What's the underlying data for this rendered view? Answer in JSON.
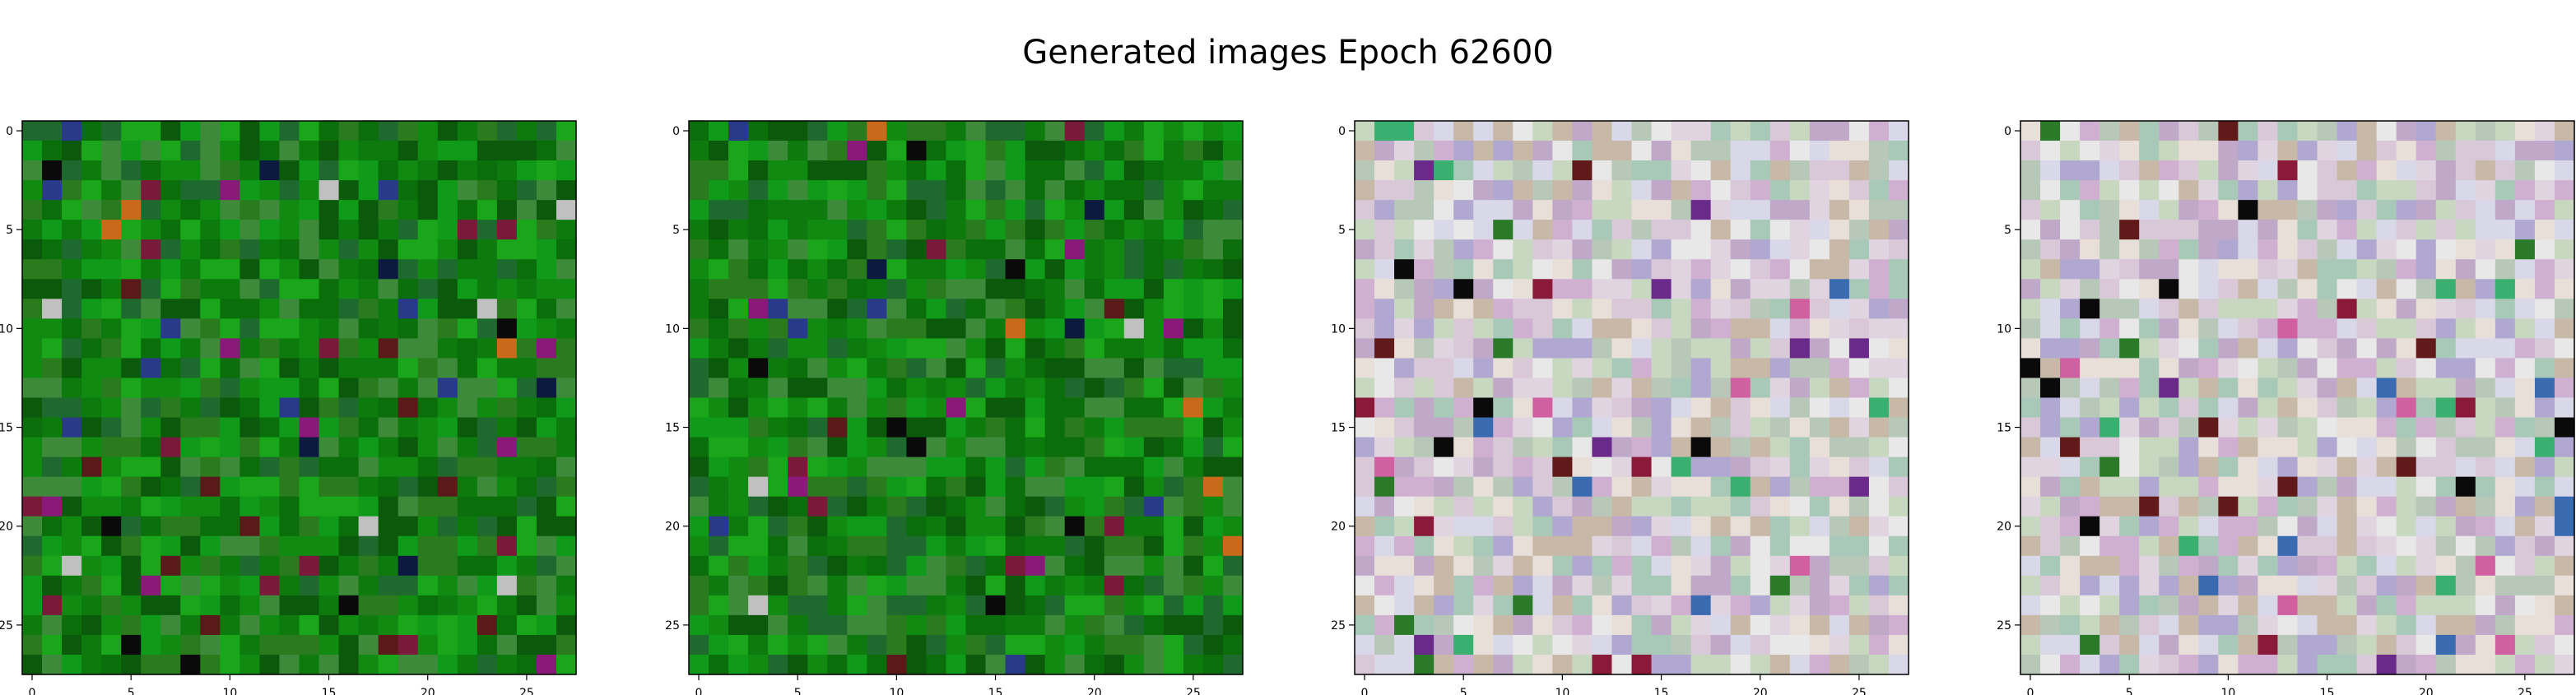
{
  "figure": {
    "title": "Generated images Epoch 62600"
  },
  "palette": {
    "green_variant": [
      "#0a6e0a",
      "#0c7a0c",
      "#118a11",
      "#0f9a1a",
      "#1aa61a",
      "#2a7a1e",
      "#0b5a0b",
      "#3d8a3a",
      "#1e6a2e"
    ],
    "green_accents": [
      "#0b1a3e",
      "#5a1a1a",
      "#7a1a3a",
      "#c96a1a",
      "#c0c0c0",
      "#0a0a0a",
      "#2a3a8a",
      "#8a1a7a"
    ],
    "pastel_variant": [
      "#d8c8d8",
      "#c8d8c0",
      "#e0d4e0",
      "#b8c8b8",
      "#d8d8e8",
      "#c0a8c8",
      "#e8e0d8",
      "#a8c8b8",
      "#d0b0d0",
      "#e8e8e8",
      "#b0a8d0",
      "#c8b8a8"
    ],
    "pastel_accents": [
      "#0a0a0a",
      "#6a2a8a",
      "#8a1a3a",
      "#2a7a2a",
      "#3a6ab0",
      "#d060a0",
      "#3ab070",
      "#601a1a"
    ]
  },
  "chart_data": [
    {
      "type": "heatmap",
      "title": "",
      "variant": "green",
      "seed": 7,
      "grid": [
        28,
        28
      ],
      "xlim": [
        -0.5,
        27.5
      ],
      "ylim": [
        27.5,
        -0.5
      ],
      "xticks": [
        0,
        5,
        10,
        15,
        20,
        25
      ],
      "yticks": [
        0,
        5,
        10,
        15,
        20,
        25
      ],
      "grid_lines": false
    },
    {
      "type": "heatmap",
      "title": "",
      "variant": "green",
      "seed": 19,
      "grid": [
        28,
        28
      ],
      "xlim": [
        -0.5,
        27.5
      ],
      "ylim": [
        27.5,
        -0.5
      ],
      "xticks": [
        0,
        5,
        10,
        15,
        20,
        25
      ],
      "yticks": [
        0,
        5,
        10,
        15,
        20,
        25
      ],
      "grid_lines": false
    },
    {
      "type": "heatmap",
      "title": "",
      "variant": "pastel",
      "seed": 31,
      "grid": [
        28,
        28
      ],
      "xlim": [
        -0.5,
        27.5
      ],
      "ylim": [
        27.5,
        -0.5
      ],
      "xticks": [
        0,
        5,
        10,
        15,
        20,
        25
      ],
      "yticks": [
        0,
        5,
        10,
        15,
        20,
        25
      ],
      "grid_lines": false
    },
    {
      "type": "heatmap",
      "title": "",
      "variant": "pastel",
      "seed": 47,
      "grid": [
        28,
        28
      ],
      "xlim": [
        -0.5,
        27.5
      ],
      "ylim": [
        27.5,
        -0.5
      ],
      "xticks": [
        0,
        5,
        10,
        15,
        20,
        25
      ],
      "yticks": [
        0,
        5,
        10,
        15,
        20,
        25
      ],
      "grid_lines": false
    }
  ]
}
